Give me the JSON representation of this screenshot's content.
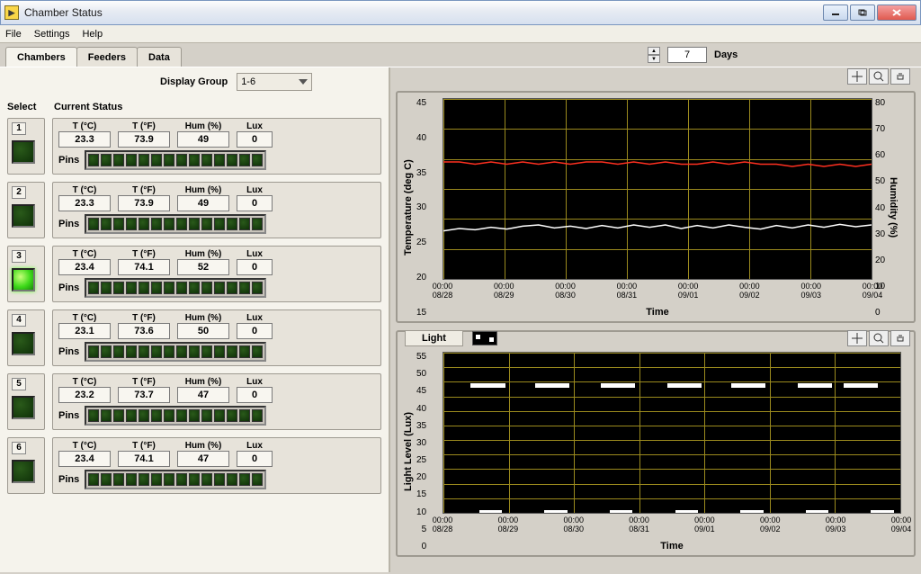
{
  "window": {
    "title": "Chamber Status"
  },
  "menu": {
    "items": [
      "File",
      "Settings",
      "Help"
    ]
  },
  "tabs": {
    "items": [
      "Chambers",
      "Feeders",
      "Data"
    ],
    "active": 0
  },
  "display_group": {
    "label": "Display Group",
    "value": "1-6"
  },
  "days": {
    "value": "7",
    "label": "Days"
  },
  "columns": {
    "select": "Select",
    "status": "Current Status"
  },
  "value_labels": {
    "tc": "T (°C)",
    "tf": "T (°F)",
    "hum": "Hum (%)",
    "lux": "Lux",
    "pins": "Pins"
  },
  "chambers": [
    {
      "n": "1",
      "selected": false,
      "tc": "23.3",
      "tf": "73.9",
      "hum": "49",
      "lux": "0"
    },
    {
      "n": "2",
      "selected": false,
      "tc": "23.3",
      "tf": "73.9",
      "hum": "49",
      "lux": "0"
    },
    {
      "n": "3",
      "selected": true,
      "tc": "23.4",
      "tf": "74.1",
      "hum": "52",
      "lux": "0"
    },
    {
      "n": "4",
      "selected": false,
      "tc": "23.1",
      "tf": "73.6",
      "hum": "50",
      "lux": "0"
    },
    {
      "n": "5",
      "selected": false,
      "tc": "23.2",
      "tf": "73.7",
      "hum": "47",
      "lux": "0"
    },
    {
      "n": "6",
      "selected": false,
      "tc": "23.4",
      "tf": "74.1",
      "hum": "47",
      "lux": "0"
    }
  ],
  "temp_chart": {
    "ylabel_left": "Temperature (deg C)",
    "ylabel_right": "Humidity (%)",
    "xlabel": "Time",
    "y_left": {
      "min": 15,
      "max": 45,
      "ticks": [
        "45",
        "40",
        "35",
        "30",
        "25",
        "20",
        "15"
      ]
    },
    "y_right": {
      "min": 0,
      "max": 80,
      "ticks": [
        "80",
        "70",
        "60",
        "50",
        "40",
        "30",
        "20",
        "10",
        "0"
      ]
    },
    "x_ticks": [
      "00:00\n08/28",
      "00:00\n08/29",
      "00:00\n08/30",
      "00:00\n08/31",
      "00:00\n09/01",
      "00:00\n09/02",
      "00:00\n09/03",
      "00:00\n09/04"
    ],
    "grid_color": "#9b8a1e",
    "bg_color": "#000000",
    "series": [
      {
        "name": "humidity",
        "color": "#ff3020",
        "axis": "right",
        "points": [
          52,
          52,
          51,
          52,
          51,
          52,
          51,
          52,
          51,
          52,
          52,
          51,
          52,
          51,
          52,
          51,
          51,
          52,
          51,
          52,
          51,
          51,
          50,
          51,
          50,
          51,
          50,
          51
        ]
      },
      {
        "name": "temperature",
        "color": "#ffffff",
        "axis": "left",
        "points": [
          23.0,
          23.4,
          23.2,
          23.6,
          23.3,
          23.8,
          24.0,
          23.5,
          23.8,
          23.4,
          23.9,
          23.5,
          24.0,
          23.6,
          24.0,
          23.4,
          23.9,
          23.5,
          24.0,
          23.6,
          23.3,
          23.9,
          23.5,
          24.0,
          23.6,
          24.1,
          23.7,
          24.0
        ]
      }
    ]
  },
  "light_chart": {
    "header": "Light",
    "ylabel": "Light Level (Lux)",
    "xlabel": "Time",
    "y": {
      "min": 0,
      "max": 55,
      "ticks": [
        "55",
        "50",
        "45",
        "40",
        "35",
        "30",
        "25",
        "20",
        "15",
        "10",
        "5",
        "0"
      ]
    },
    "x_ticks": [
      "00:00\n08/28",
      "00:00\n08/29",
      "00:00\n08/30",
      "00:00\n08/31",
      "00:00\n09/01",
      "00:00\n09/02",
      "00:00\n09/03",
      "00:00\n09/04"
    ],
    "grid_color": "#9b8a1e",
    "bg_color": "#000000",
    "series_color": "#ffffff",
    "on_level": 44,
    "segments": [
      {
        "start": 0.06,
        "end": 0.135
      },
      {
        "start": 0.2,
        "end": 0.275
      },
      {
        "start": 0.345,
        "end": 0.42
      },
      {
        "start": 0.49,
        "end": 0.565
      },
      {
        "start": 0.63,
        "end": 0.705
      },
      {
        "start": 0.775,
        "end": 0.85
      },
      {
        "start": 0.875,
        "end": 0.95
      }
    ]
  },
  "colors": {
    "hum_line": "#ff3020",
    "temp_line": "#ffffff",
    "led_on": "#3eda1a",
    "led_off": "#0e3008"
  }
}
